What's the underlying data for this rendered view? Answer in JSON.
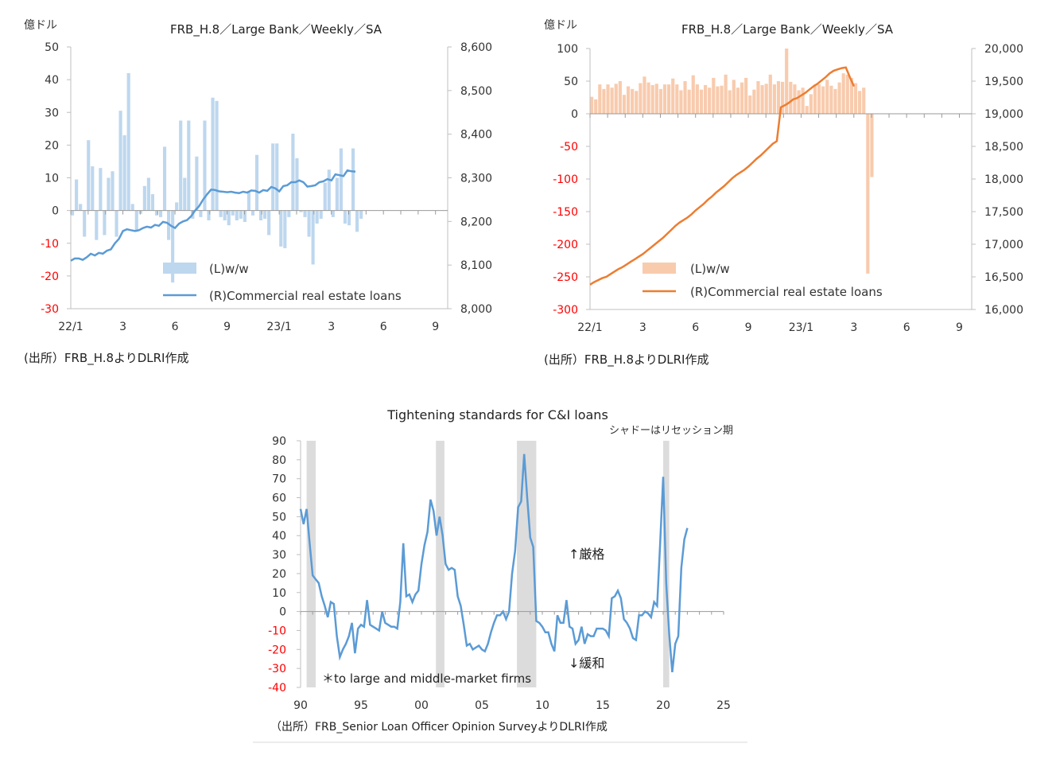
{
  "charts": [
    {
      "title": "FRB_H.8／Large Bank／Weekly／SA",
      "unit": "億ドル",
      "source": "(出所）FRB_H.8よりDLRI作成",
      "left_ticks": [
        "50",
        "40",
        "30",
        "20",
        "10",
        "0",
        "-10",
        "-20",
        "-30"
      ],
      "right_ticks": [
        "8,600",
        "8,500",
        "8,400",
        "8,300",
        "8,200",
        "8,100",
        "8,000"
      ],
      "x_ticks": [
        "22/1",
        "3",
        "6",
        "9",
        "23/1",
        "3",
        "6",
        "9"
      ],
      "legend_bar": "(L)w/w",
      "legend_line": "(R)Commercial real estate loans"
    },
    {
      "title": "FRB_H.8／Large Bank／Weekly／SA",
      "unit": "億ドル",
      "source": "(出所）FRB_H.8よりDLRI作成",
      "left_ticks": [
        "100",
        "50",
        "0",
        "-50",
        "-100",
        "-150",
        "-200",
        "-250",
        "-300"
      ],
      "right_ticks": [
        "20,000",
        "19,500",
        "19,000",
        "18,500",
        "18,000",
        "17,500",
        "17,000",
        "16,500",
        "16,000"
      ],
      "x_ticks": [
        "22/1",
        "3",
        "6",
        "9",
        "23/1",
        "3",
        "6",
        "9"
      ],
      "legend_bar": "(L)w/w",
      "legend_line": "(R)Commercial real estate loans"
    },
    {
      "title": "Tightening standards for C&I loans",
      "note": "シャドーはリセッション期",
      "source": "（出所）FRB_Senior Loan Officer Opinion SurveyよりDLRI作成",
      "y_ticks": [
        "90",
        "80",
        "70",
        "60",
        "50",
        "40",
        "30",
        "20",
        "10",
        "0",
        "-10",
        "-20",
        "-30",
        "-40"
      ],
      "x_ticks": [
        "90",
        "95",
        "00",
        "05",
        "10",
        "15",
        "20",
        "25"
      ],
      "up_label": "↑厳格",
      "down_label": "↓緩和",
      "footnote": "＊to large and middle-market firms"
    }
  ],
  "colors": {
    "bar1": "#bdd7ee",
    "line1": "#5b9bd5",
    "bar2": "#f8cbad",
    "line2": "#ed7d31",
    "line3": "#5b9bd5",
    "shade": "#dcdcdc",
    "negative_tick": "#ff0000"
  },
  "chart_data": [
    {
      "type": "bar+line",
      "title": "FRB_H.8／Large Bank／Weekly／SA",
      "ylabel_left": "億ドル",
      "ylim_left": [
        -30,
        50
      ],
      "ylim_right": [
        8000,
        8600
      ],
      "x_range_weeks": [
        0,
        94
      ],
      "series": [
        {
          "name": "(L)w/w",
          "axis": "left",
          "type": "bar",
          "values": [
            -1.5,
            9.5,
            2,
            -8,
            21.5,
            13.5,
            -9,
            13,
            -7.5,
            10,
            12,
            -8,
            30.5,
            23,
            42,
            2,
            -6.5,
            -1,
            7.5,
            10,
            5,
            -1.5,
            -2,
            19.5,
            -9,
            -22,
            2.5,
            27.5,
            10,
            27.5,
            -2.5,
            16.5,
            -2,
            27.5,
            -3,
            34.5,
            33.5,
            -2,
            -3,
            -4.5,
            -1.5,
            -3,
            -2.5,
            -3.5,
            6,
            -1.5,
            17,
            -3,
            -2.5,
            -7.5,
            20.5,
            20.5,
            -11,
            -11.5,
            -2,
            23.5,
            16,
            -0.5,
            -2,
            -8,
            -16.5,
            -4,
            -2.5,
            8.5,
            12.5,
            -2,
            10,
            19,
            -4,
            -4.5,
            19,
            -6.5,
            -2.5
          ]
        },
        {
          "name": "(R)Commercial real estate loans",
          "axis": "right",
          "type": "line",
          "values": [
            8110,
            8115,
            8115,
            8112,
            8118,
            8126,
            8122,
            8128,
            8126,
            8133,
            8136,
            8150,
            8160,
            8178,
            8182,
            8180,
            8178,
            8180,
            8185,
            8188,
            8186,
            8192,
            8190,
            8199,
            8197,
            8190,
            8185,
            8195,
            8200,
            8203,
            8212,
            8225,
            8235,
            8250,
            8262,
            8273,
            8272,
            8269,
            8268,
            8267,
            8268,
            8266,
            8265,
            8268,
            8266,
            8271,
            8270,
            8266,
            8272,
            8270,
            8279,
            8276,
            8269,
            8281,
            8283,
            8290,
            8290,
            8294,
            8290,
            8280,
            8281,
            8283,
            8290,
            8292,
            8297,
            8294,
            8308,
            8306,
            8304,
            8317,
            8315,
            8314
          ]
        }
      ]
    },
    {
      "type": "bar+line",
      "title": "FRB_H.8／Large Bank／Weekly／SA",
      "ylabel_left": "億ドル",
      "ylim_left": [
        -300,
        100
      ],
      "ylim_right": [
        16000,
        20000
      ],
      "x_range_weeks": [
        0,
        94
      ],
      "series": [
        {
          "name": "(L)w/w",
          "axis": "left",
          "type": "bar",
          "values": [
            26,
            22,
            45,
            38,
            45,
            40,
            46,
            50,
            29,
            42,
            38,
            35,
            47,
            57,
            48,
            44,
            46,
            38,
            45,
            45,
            54,
            45,
            36,
            50,
            37,
            59,
            45,
            37,
            44,
            40,
            55,
            42,
            43,
            60,
            36,
            52,
            40,
            48,
            55,
            28,
            37,
            50,
            44,
            46,
            60,
            45,
            50,
            49,
            100,
            49,
            45,
            36,
            40,
            12,
            30,
            45,
            45,
            42,
            52,
            43,
            38,
            48,
            62,
            60,
            55,
            47,
            35,
            40,
            -245,
            -97
          ]
        },
        {
          "name": "(R)Commercial real estate loans",
          "axis": "right",
          "type": "line",
          "values": [
            16380,
            16420,
            16450,
            16480,
            16500,
            16540,
            16580,
            16620,
            16650,
            16690,
            16730,
            16770,
            16810,
            16850,
            16900,
            16950,
            17000,
            17050,
            17100,
            17160,
            17220,
            17280,
            17330,
            17370,
            17410,
            17460,
            17520,
            17570,
            17620,
            17680,
            17730,
            17790,
            17840,
            17890,
            17950,
            18010,
            18060,
            18100,
            18140,
            18190,
            18250,
            18310,
            18360,
            18420,
            18480,
            18540,
            18580,
            19100,
            19130,
            19170,
            19220,
            19240,
            19280,
            19320,
            19370,
            19420,
            19460,
            19510,
            19560,
            19620,
            19660,
            19680,
            19700,
            19710,
            19560,
            19420
          ]
        }
      ]
    },
    {
      "type": "line",
      "title": "Tightening standards for C&I loans",
      "ylim": [
        -40,
        90
      ],
      "xlim": [
        1990,
        2025
      ],
      "recessions": [
        [
          1990.5,
          1991.25
        ],
        [
          2001.2,
          2001.9
        ],
        [
          2007.9,
          2009.5
        ],
        [
          2020.0,
          2020.5
        ]
      ],
      "series": [
        {
          "name": "Tightening standards for C&I loans",
          "x_start": 1990.0,
          "x_step": 0.25,
          "values": [
            54,
            46,
            54,
            36,
            19,
            17,
            15,
            8,
            3,
            -3,
            5,
            4,
            -13,
            -24,
            -20,
            -17,
            -13,
            -6,
            -22,
            -9,
            -7,
            -8,
            6,
            -7,
            -8,
            -9,
            -10,
            0,
            -6,
            -7,
            -8,
            -8,
            -9,
            5,
            36,
            8,
            9,
            5,
            9,
            11,
            25,
            35,
            42,
            59,
            53,
            40,
            50,
            40,
            25,
            22,
            23,
            22,
            8,
            3,
            -7,
            -18,
            -17,
            -20,
            -19,
            -18,
            -20,
            -21,
            -17,
            -11,
            -6,
            -2,
            -2,
            0,
            -4,
            0,
            20,
            32,
            55,
            58,
            83,
            60,
            39,
            34,
            -5,
            -6,
            -8,
            -11,
            -11,
            -17,
            -21,
            -2,
            -6,
            -6,
            6,
            -8,
            -9,
            -17,
            -15,
            -8,
            -17,
            -12,
            -13,
            -13,
            -9,
            -9,
            -9,
            -10,
            -13,
            7,
            8,
            11,
            7,
            -4,
            -6,
            -9,
            -14,
            -15,
            -2,
            -2,
            0,
            -1,
            -3,
            5,
            3,
            36,
            71,
            15,
            -12,
            -32,
            -17,
            -13,
            23,
            38,
            44
          ]
        }
      ]
    }
  ]
}
